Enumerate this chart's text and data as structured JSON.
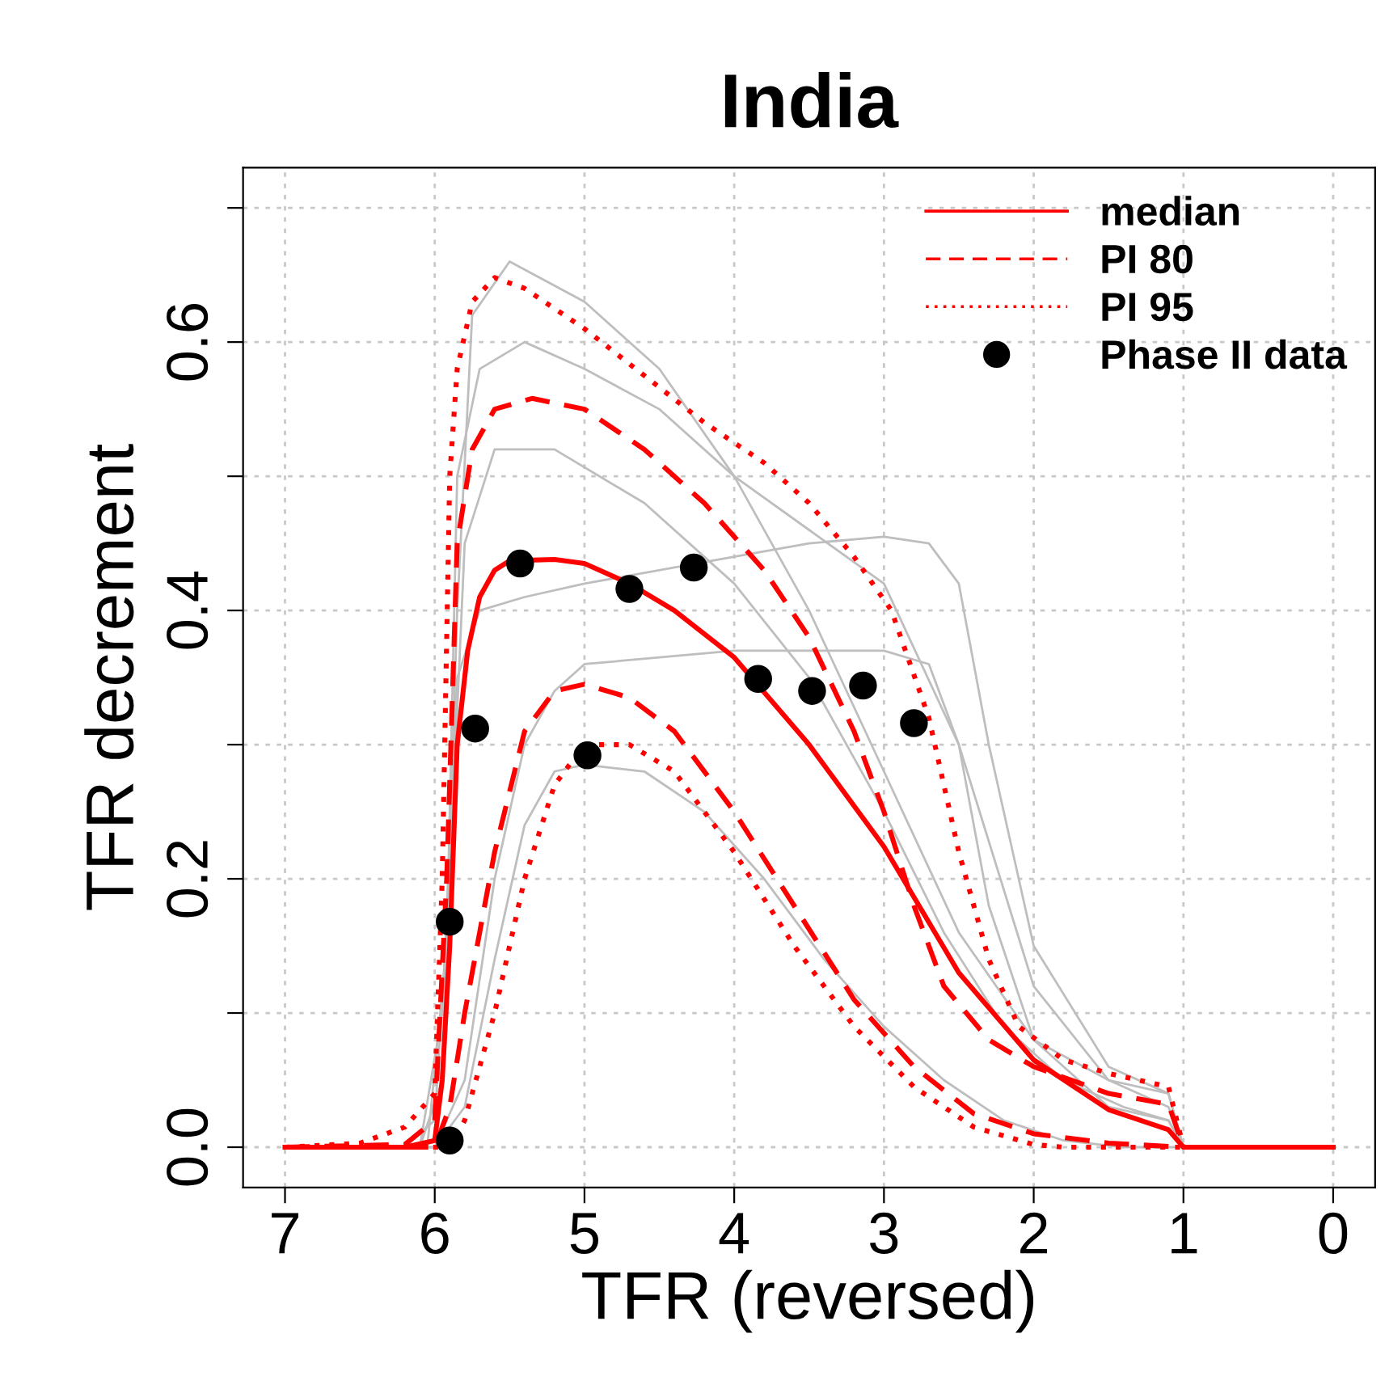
{
  "chart_data": {
    "type": "line",
    "title": "India",
    "xlabel": "TFR (reversed)",
    "ylabel": "TFR decrement",
    "xlim": [
      7.28,
      -0.28
    ],
    "ylim": [
      -0.03,
      0.73
    ],
    "xticks": [
      7,
      6,
      5,
      4,
      3,
      2,
      1,
      0
    ],
    "yticks": [
      {
        "value": 0,
        "label": "0.0"
      },
      {
        "value": 0.1,
        "label": null
      },
      {
        "value": 0.2,
        "label": "0.2"
      },
      {
        "value": 0.3,
        "label": null
      },
      {
        "value": 0.4,
        "label": "0.4"
      },
      {
        "value": 0.5,
        "label": null
      },
      {
        "value": 0.6,
        "label": "0.6"
      },
      {
        "value": 0.7,
        "label": null
      }
    ],
    "grid": true,
    "legend": "top right",
    "series": [
      {
        "color": "#bebebe",
        "line_style": "solid",
        "x": [
          7,
          6.1,
          5.95,
          5.85,
          5.75,
          5.5,
          5.0,
          4.5,
          4.0,
          3.5,
          3.0,
          2.5,
          2.0,
          1.5,
          1.1,
          1.0,
          0
        ],
        "values": [
          0,
          0,
          0.05,
          0.4,
          0.62,
          0.66,
          0.63,
          0.58,
          0.5,
          0.4,
          0.28,
          0.16,
          0.08,
          0.05,
          0.04,
          0,
          0
        ]
      },
      {
        "color": "#bebebe",
        "line_style": "solid",
        "x": [
          7,
          6.2,
          6.0,
          5.9,
          5.8,
          5.6,
          5.2,
          4.6,
          4.0,
          3.5,
          3.0,
          2.6,
          2.2,
          1.8,
          1.4,
          1.1,
          1.0,
          0
        ],
        "values": [
          0,
          0,
          0.02,
          0.2,
          0.45,
          0.52,
          0.52,
          0.48,
          0.42,
          0.35,
          0.25,
          0.16,
          0.09,
          0.05,
          0.03,
          0.02,
          0,
          0
        ]
      },
      {
        "color": "#bebebe",
        "line_style": "solid",
        "x": [
          7,
          6.0,
          5.8,
          5.6,
          5.4,
          5.2,
          5.0,
          4.0,
          3.0,
          2.7,
          2.5,
          2.3,
          2.0,
          1.5,
          1.1,
          1.0,
          0
        ],
        "values": [
          0,
          0,
          0.05,
          0.2,
          0.3,
          0.34,
          0.36,
          0.37,
          0.37,
          0.36,
          0.3,
          0.18,
          0.08,
          0.03,
          0.02,
          0,
          0
        ]
      },
      {
        "color": "#bebebe",
        "line_style": "solid",
        "x": [
          7,
          6.0,
          5.8,
          5.6,
          5.4,
          5.2,
          5.0,
          4.6,
          4.2,
          3.8,
          3.4,
          3.0,
          2.6,
          2.2,
          1.8,
          1.4,
          1.0,
          0
        ],
        "values": [
          0,
          0,
          0.03,
          0.14,
          0.24,
          0.28,
          0.285,
          0.28,
          0.25,
          0.2,
          0.14,
          0.09,
          0.05,
          0.02,
          0.005,
          0,
          0,
          0
        ]
      },
      {
        "color": "#bebebe",
        "line_style": "solid",
        "x": [
          7,
          6.1,
          5.95,
          5.85,
          5.7,
          5.4,
          5.0,
          4.0,
          3.5,
          3.0,
          2.7,
          2.5,
          2.3,
          2.0,
          1.5,
          1.1,
          1.0,
          0
        ],
        "values": [
          0,
          0,
          0.1,
          0.35,
          0.4,
          0.41,
          0.42,
          0.44,
          0.45,
          0.455,
          0.45,
          0.42,
          0.3,
          0.15,
          0.06,
          0.04,
          0,
          0
        ]
      },
      {
        "color": "#bebebe",
        "line_style": "solid",
        "x": [
          7,
          6.05,
          5.92,
          5.85,
          5.7,
          5.4,
          5.0,
          4.5,
          4.0,
          3.5,
          3.0,
          2.5,
          2.0,
          1.5,
          1.1,
          1.0,
          0
        ],
        "values": [
          0,
          0,
          0.15,
          0.5,
          0.58,
          0.6,
          0.58,
          0.55,
          0.5,
          0.46,
          0.42,
          0.3,
          0.12,
          0.05,
          0.03,
          0,
          0
        ]
      },
      {
        "name": "median",
        "color": "#ff0000",
        "line_style": "solid",
        "x": [
          7,
          6.2,
          6.0,
          5.95,
          5.9,
          5.85,
          5.78,
          5.7,
          5.6,
          5.5,
          5.2,
          5.0,
          4.7,
          4.4,
          4.0,
          3.5,
          3.0,
          2.5,
          2.0,
          1.5,
          1.1,
          1.0,
          0
        ],
        "values": [
          0,
          0,
          0.005,
          0.05,
          0.15,
          0.3,
          0.37,
          0.41,
          0.43,
          0.437,
          0.438,
          0.435,
          0.42,
          0.4,
          0.365,
          0.3,
          0.224,
          0.13,
          0.065,
          0.028,
          0.013,
          0,
          0
        ]
      },
      {
        "name": "PI 80",
        "color": "#ff0000",
        "line_style": "dashed",
        "x": [
          7,
          6.2,
          6.0,
          5.92,
          5.85,
          5.75,
          5.6,
          5.35,
          5.0,
          4.6,
          4.2,
          3.8,
          3.5,
          3.2,
          3.0,
          2.8,
          2.6,
          2.3,
          2.0,
          1.5,
          1.1,
          1.0,
          0
        ],
        "values": [
          0,
          0.002,
          0.02,
          0.2,
          0.45,
          0.52,
          0.55,
          0.558,
          0.55,
          0.52,
          0.48,
          0.43,
          0.38,
          0.31,
          0.25,
          0.18,
          0.12,
          0.08,
          0.06,
          0.04,
          0.032,
          0,
          0
        ]
      },
      {
        "color": "#ff0000",
        "line_style": "dashed",
        "x": [
          7,
          6.0,
          5.9,
          5.8,
          5.6,
          5.4,
          5.2,
          5.0,
          4.7,
          4.4,
          4.0,
          3.6,
          3.2,
          2.8,
          2.4,
          2.0,
          1.5,
          1.0,
          0
        ],
        "values": [
          0,
          0,
          0.03,
          0.1,
          0.22,
          0.31,
          0.34,
          0.345,
          0.335,
          0.31,
          0.25,
          0.18,
          0.11,
          0.06,
          0.025,
          0.01,
          0.003,
          0,
          0
        ]
      },
      {
        "name": "PI 95",
        "color": "#ff0000",
        "line_style": "dotted",
        "x": [
          7,
          6.5,
          6.2,
          6.0,
          5.95,
          5.9,
          5.85,
          5.75,
          5.6,
          5.4,
          5.0,
          4.6,
          4.2,
          3.8,
          3.5,
          3.2,
          2.95,
          2.7,
          2.5,
          2.3,
          2.1,
          1.8,
          1.5,
          1.1,
          1.0,
          0
        ],
        "values": [
          0,
          0.003,
          0.015,
          0.04,
          0.2,
          0.5,
          0.58,
          0.63,
          0.648,
          0.64,
          0.61,
          0.575,
          0.54,
          0.51,
          0.48,
          0.44,
          0.4,
          0.32,
          0.22,
          0.14,
          0.09,
          0.065,
          0.055,
          0.045,
          0,
          0
        ]
      },
      {
        "color": "#ff0000",
        "line_style": "dotted",
        "x": [
          7,
          5.9,
          5.8,
          5.6,
          5.4,
          5.2,
          5.0,
          4.7,
          4.4,
          4.0,
          3.6,
          3.2,
          2.8,
          2.4,
          2.0,
          1.8,
          0
        ],
        "values": [
          0,
          0,
          0.02,
          0.1,
          0.2,
          0.27,
          0.3,
          0.3,
          0.28,
          0.22,
          0.15,
          0.09,
          0.045,
          0.015,
          0.002,
          0,
          0
        ]
      },
      {
        "name": "Phase II data",
        "type": "scatter",
        "marker": "circle",
        "color": "#000000",
        "x": [
          5.9,
          5.9,
          5.73,
          5.43,
          4.98,
          4.7,
          4.27,
          3.84,
          3.48,
          3.14,
          2.8
        ],
        "values": [
          0.005,
          0.168,
          0.312,
          0.435,
          0.292,
          0.416,
          0.432,
          0.349,
          0.34,
          0.344,
          0.316
        ]
      }
    ]
  }
}
